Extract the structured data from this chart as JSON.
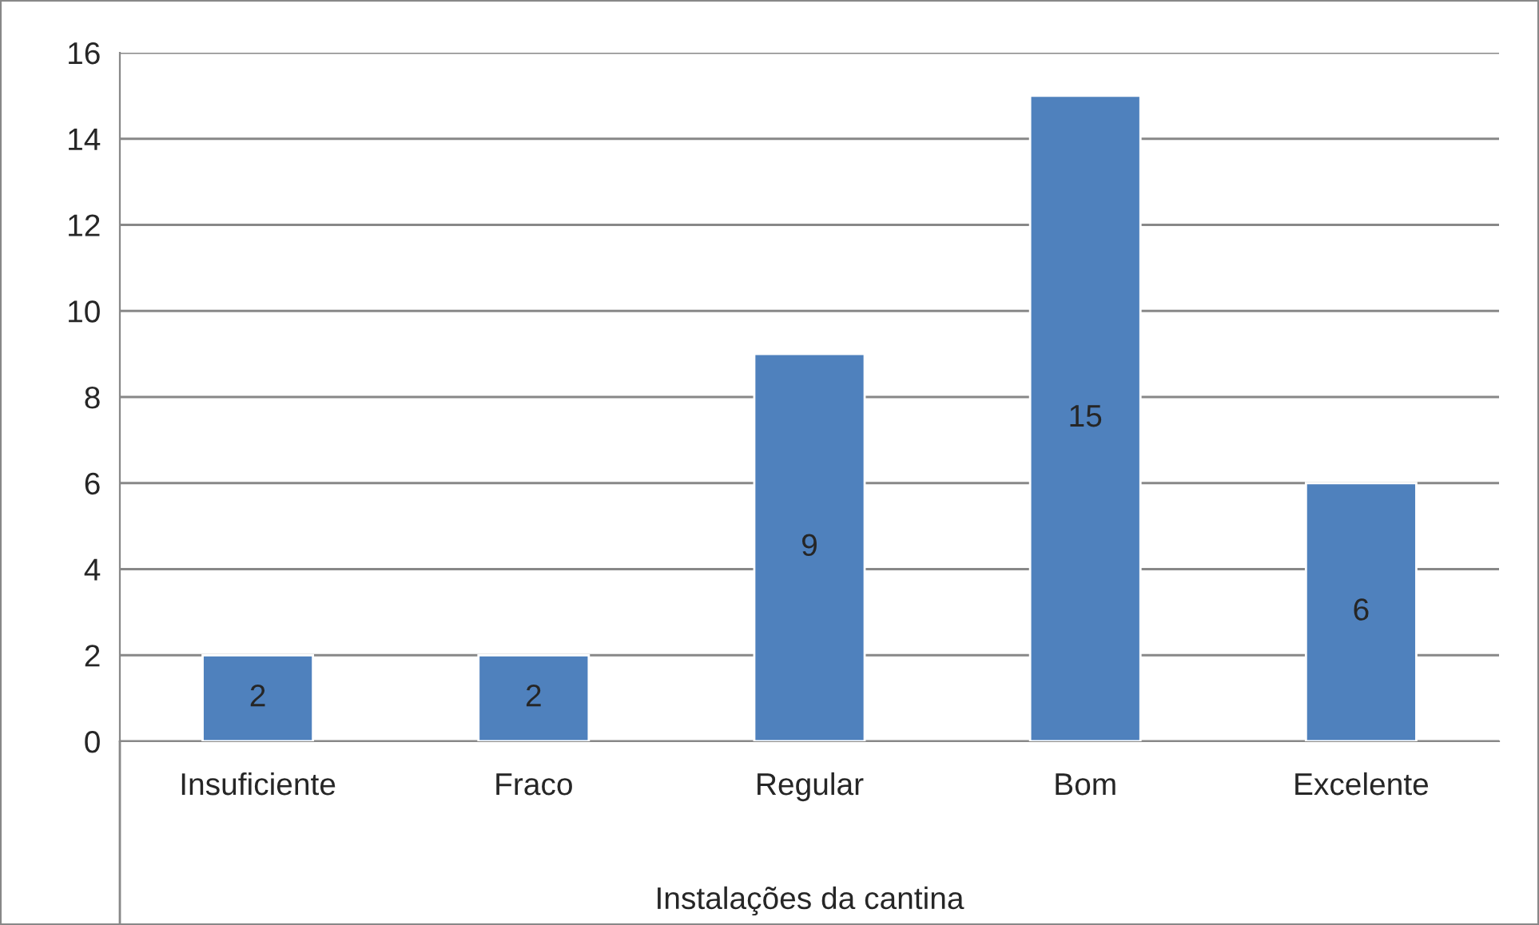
{
  "chart_data": {
    "type": "bar",
    "xlabel": "Instalações da cantina",
    "categories": [
      "Insuficiente",
      "Fraco",
      "Regular",
      "Bom",
      "Excelente"
    ],
    "values": [
      2,
      2,
      9,
      15,
      6
    ],
    "color": "#4f81bd",
    "ylim": [
      0,
      16
    ],
    "yticks": [
      0,
      2,
      4,
      6,
      8,
      10,
      12,
      14,
      16
    ],
    "grid": "y",
    "data_labels": true,
    "legend": false
  }
}
